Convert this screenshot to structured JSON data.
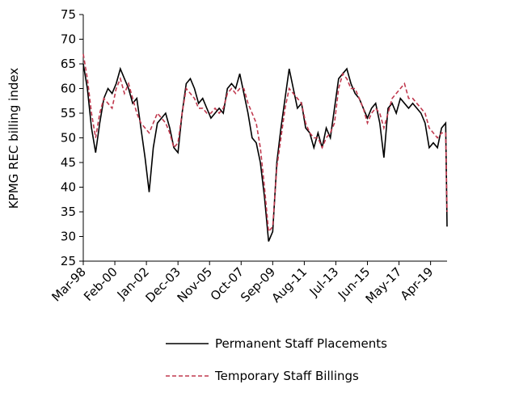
{
  "chart_data": {
    "type": "line",
    "y_label": "KPMG REC billing index",
    "x": [
      0,
      3,
      6,
      9,
      12,
      15,
      18,
      21,
      24,
      27,
      30,
      33,
      36,
      39,
      42,
      45,
      48,
      51,
      54,
      57,
      60,
      63,
      66,
      69,
      72,
      75,
      78,
      81,
      84,
      87,
      90,
      93,
      96,
      99,
      102,
      105,
      108,
      111,
      114,
      117,
      120,
      123,
      126,
      129,
      132,
      135,
      138,
      141,
      144,
      147,
      150,
      153,
      156,
      159,
      162,
      165,
      168,
      171,
      174,
      177,
      180,
      183,
      186,
      189,
      192,
      195,
      198,
      201,
      204,
      207,
      210,
      213,
      216,
      219,
      222,
      225,
      228,
      231,
      234,
      237,
      240,
      243,
      246,
      249,
      252,
      255,
      258,
      261,
      264,
      265
    ],
    "xlim": [
      0,
      265
    ],
    "xticks": [
      {
        "value": 0,
        "label": "Mar-98"
      },
      {
        "value": 23,
        "label": "Feb-00"
      },
      {
        "value": 46,
        "label": "Jan-02"
      },
      {
        "value": 69,
        "label": "Dec-03"
      },
      {
        "value": 92,
        "label": "Nov-05"
      },
      {
        "value": 115,
        "label": "Oct-07"
      },
      {
        "value": 138,
        "label": "Sep-09"
      },
      {
        "value": 161,
        "label": "Aug-11"
      },
      {
        "value": 184,
        "label": "Jul-13"
      },
      {
        "value": 207,
        "label": "Jun-15"
      },
      {
        "value": 230,
        "label": "May-17"
      },
      {
        "value": 253,
        "label": "Apr-19"
      }
    ],
    "ylim": [
      25,
      75
    ],
    "yticks": [
      25,
      30,
      35,
      40,
      45,
      50,
      55,
      60,
      65,
      70,
      75
    ],
    "series": [
      {
        "name": "Permanent Staff Placements",
        "color": "#000000",
        "dash": "solid",
        "values": [
          65,
          60,
          52,
          47,
          53,
          58,
          60,
          59,
          61,
          64,
          62,
          60,
          57,
          58,
          52,
          46,
          39,
          48,
          53,
          54,
          55,
          52,
          48,
          47,
          55,
          61,
          62,
          60,
          57,
          58,
          56,
          54,
          55,
          56,
          55,
          60,
          61,
          60,
          63,
          59,
          55,
          50,
          49,
          45,
          38,
          29,
          31,
          45,
          52,
          58,
          64,
          60,
          56,
          57,
          52,
          51,
          48,
          51,
          48,
          52,
          50,
          56,
          62,
          63,
          64,
          61,
          59,
          58,
          56,
          54,
          56,
          57,
          53,
          46,
          56,
          57,
          55,
          58,
          57,
          56,
          57,
          56,
          55,
          53,
          48,
          49,
          48,
          52,
          53,
          32
        ]
      },
      {
        "name": "Temporary Staff Billings",
        "color": "#c0394e",
        "dash": "dashed",
        "values": [
          67,
          62,
          55,
          50,
          55,
          58,
          57,
          56,
          60,
          62,
          59,
          61,
          58,
          55,
          53,
          52,
          51,
          53,
          55,
          54,
          53,
          51,
          48,
          49,
          55,
          60,
          59,
          58,
          56,
          56,
          55,
          55,
          56,
          55,
          56,
          59,
          60,
          59,
          60,
          60,
          57,
          55,
          53,
          48,
          40,
          31,
          32,
          44,
          50,
          56,
          60,
          59,
          58,
          57,
          53,
          51,
          50,
          50,
          48,
          50,
          51,
          53,
          60,
          63,
          62,
          60,
          60,
          58,
          56,
          53,
          55,
          56,
          55,
          52,
          55,
          58,
          59,
          60,
          61,
          58,
          58,
          57,
          56,
          55,
          52,
          51,
          50,
          51,
          51,
          35
        ]
      }
    ]
  }
}
